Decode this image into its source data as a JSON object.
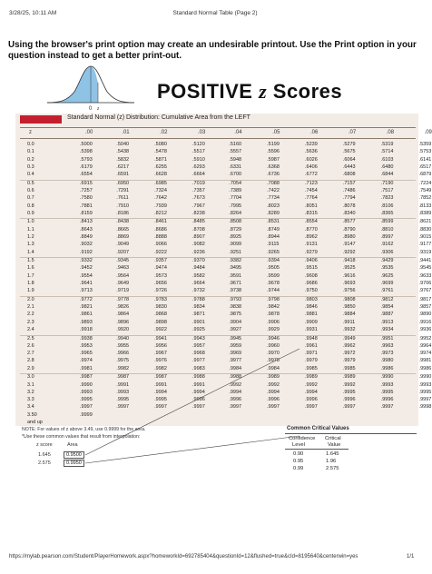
{
  "header": {
    "datetime": "3/28/25, 10:11 AM",
    "page_title": "Standard Normal Table (Page 2)"
  },
  "warning": "Using the browser's print option may create an undesirable printout. Use the Print option in your question instead to get a better print-out.",
  "figure": {
    "label_zero": "0",
    "label_z": "z"
  },
  "title": {
    "prefix": "POSITIVE ",
    "z": "z",
    "suffix": " Scores"
  },
  "table": {
    "title": "Standard Normal (z) Distribution: Cumulative Area from the LEFT",
    "z_header": "z",
    "columns": [
      ".00",
      ".01",
      ".02",
      ".03",
      ".04",
      ".05",
      ".06",
      ".07",
      ".08",
      ".09"
    ],
    "rows": [
      {
        "z": "0.0",
        "v": [
          ".5000",
          ".5040",
          ".5080",
          ".5120",
          ".5160",
          ".5199",
          ".5239",
          ".5279",
          ".5319",
          ".5359"
        ]
      },
      {
        "z": "0.1",
        "v": [
          ".5398",
          ".5438",
          ".5478",
          ".5517",
          ".5557",
          ".5596",
          ".5636",
          ".5675",
          ".5714",
          ".5753"
        ]
      },
      {
        "z": "0.2",
        "v": [
          ".5793",
          ".5832",
          ".5871",
          ".5910",
          ".5948",
          ".5987",
          ".6026",
          ".6064",
          ".6103",
          ".6141"
        ]
      },
      {
        "z": "0.3",
        "v": [
          ".6179",
          ".6217",
          ".6255",
          ".6293",
          ".6331",
          ".6368",
          ".6406",
          ".6443",
          ".6480",
          ".6517"
        ]
      },
      {
        "z": "0.4",
        "v": [
          ".6554",
          ".6591",
          ".6628",
          ".6664",
          ".6700",
          ".6736",
          ".6772",
          ".6808",
          ".6844",
          ".6879"
        ]
      },
      {
        "z": "0.5",
        "v": [
          ".6915",
          ".6950",
          ".6985",
          ".7019",
          ".7054",
          ".7088",
          ".7123",
          ".7157",
          ".7190",
          ".7224"
        ]
      },
      {
        "z": "0.6",
        "v": [
          ".7257",
          ".7291",
          ".7324",
          ".7357",
          ".7389",
          ".7422",
          ".7454",
          ".7486",
          ".7517",
          ".7549"
        ]
      },
      {
        "z": "0.7",
        "v": [
          ".7580",
          ".7611",
          ".7642",
          ".7673",
          ".7704",
          ".7734",
          ".7764",
          ".7794",
          ".7823",
          ".7852"
        ]
      },
      {
        "z": "0.8",
        "v": [
          ".7881",
          ".7910",
          ".7939",
          ".7967",
          ".7995",
          ".8023",
          ".8051",
          ".8078",
          ".8106",
          ".8133"
        ]
      },
      {
        "z": "0.9",
        "v": [
          ".8159",
          ".8186",
          ".8212",
          ".8238",
          ".8264",
          ".8289",
          ".8315",
          ".8340",
          ".8365",
          ".8389"
        ]
      },
      {
        "z": "1.0",
        "v": [
          ".8413",
          ".8438",
          ".8461",
          ".8485",
          ".8508",
          ".8531",
          ".8554",
          ".8577",
          ".8599",
          ".8621"
        ]
      },
      {
        "z": "1.1",
        "v": [
          ".8643",
          ".8665",
          ".8686",
          ".8708",
          ".8729",
          ".8749",
          ".8770",
          ".8790",
          ".8810",
          ".8830"
        ]
      },
      {
        "z": "1.2",
        "v": [
          ".8849",
          ".8869",
          ".8888",
          ".8907",
          ".8925",
          ".8944",
          ".8962",
          ".8980",
          ".8997",
          ".9015"
        ]
      },
      {
        "z": "1.3",
        "v": [
          ".9032",
          ".9049",
          ".9066",
          ".9082",
          ".9099",
          ".9115",
          ".9131",
          ".9147",
          ".9162",
          ".9177"
        ]
      },
      {
        "z": "1.4",
        "v": [
          ".9192",
          ".9207",
          ".9222",
          ".9236",
          ".9251",
          ".9265",
          ".9279",
          ".9292",
          ".9306",
          ".9319"
        ]
      },
      {
        "z": "1.5",
        "v": [
          ".9332",
          ".9345",
          ".9357",
          ".9370",
          ".9382",
          ".9394",
          ".9406",
          ".9418",
          ".9429",
          ".9441"
        ]
      },
      {
        "z": "1.6",
        "v": [
          ".9452",
          ".9463",
          ".9474",
          ".9484",
          ".9495",
          ".9505",
          ".9515",
          ".9525",
          ".9535",
          ".9545"
        ]
      },
      {
        "z": "1.7",
        "v": [
          ".9554",
          ".9564",
          ".9573",
          ".9582",
          ".9591",
          ".9599",
          ".9608",
          ".9616",
          ".9625",
          ".9633"
        ]
      },
      {
        "z": "1.8",
        "v": [
          ".9641",
          ".9649",
          ".9656",
          ".9664",
          ".9671",
          ".9678",
          ".9686",
          ".9693",
          ".9699",
          ".9706"
        ]
      },
      {
        "z": "1.9",
        "v": [
          ".9713",
          ".9719",
          ".9726",
          ".9732",
          ".9738",
          ".9744",
          ".9750",
          ".9756",
          ".9761",
          ".9767"
        ]
      },
      {
        "z": "2.0",
        "v": [
          ".9772",
          ".9778",
          ".9783",
          ".9788",
          ".9793",
          ".9798",
          ".9803",
          ".9808",
          ".9812",
          ".9817"
        ]
      },
      {
        "z": "2.1",
        "v": [
          ".9821",
          ".9826",
          ".9830",
          ".9834",
          ".9838",
          ".9842",
          ".9846",
          ".9850",
          ".9854",
          ".9857"
        ]
      },
      {
        "z": "2.2",
        "v": [
          ".9861",
          ".9864",
          ".9868",
          ".9871",
          ".9875",
          ".9878",
          ".9881",
          ".9884",
          ".9887",
          ".9890"
        ]
      },
      {
        "z": "2.3",
        "v": [
          ".9893",
          ".9896",
          ".9898",
          ".9901",
          ".9904",
          ".9906",
          ".9909",
          ".9911",
          ".9913",
          ".9916"
        ]
      },
      {
        "z": "2.4",
        "v": [
          ".9918",
          ".9920",
          ".9922",
          ".9925",
          ".9927",
          ".9929",
          ".9931",
          ".9932",
          ".9934",
          ".9936"
        ]
      },
      {
        "z": "2.5",
        "v": [
          ".9938",
          ".9940",
          ".9941",
          ".9943",
          ".9945",
          ".9946",
          ".9948",
          ".9949",
          ".9951",
          ".9952"
        ]
      },
      {
        "z": "2.6",
        "v": [
          ".9953",
          ".9955",
          ".9956",
          ".9957",
          ".9959",
          ".9960",
          ".9961",
          ".9962",
          ".9963",
          ".9964"
        ]
      },
      {
        "z": "2.7",
        "v": [
          ".9965",
          ".9966",
          ".9967",
          ".9968",
          ".9969",
          ".9970",
          ".9971",
          ".9972",
          ".9973",
          ".9974"
        ]
      },
      {
        "z": "2.8",
        "v": [
          ".9974",
          ".9975",
          ".9976",
          ".9977",
          ".9977",
          ".9978",
          ".9979",
          ".9979",
          ".9980",
          ".9981"
        ]
      },
      {
        "z": "2.9",
        "v": [
          ".9981",
          ".9982",
          ".9982",
          ".9983",
          ".9984",
          ".9984",
          ".9985",
          ".9985",
          ".9986",
          ".9986"
        ]
      },
      {
        "z": "3.0",
        "v": [
          ".9987",
          ".9987",
          ".9987",
          ".9988",
          ".9988",
          ".9989",
          ".9989",
          ".9989",
          ".9990",
          ".9990"
        ]
      },
      {
        "z": "3.1",
        "v": [
          ".9990",
          ".9991",
          ".9991",
          ".9991",
          ".9992",
          ".9992",
          ".9992",
          ".9992",
          ".9993",
          ".9993"
        ]
      },
      {
        "z": "3.2",
        "v": [
          ".9993",
          ".9993",
          ".9994",
          ".9994",
          ".9994",
          ".9994",
          ".9994",
          ".9995",
          ".9995",
          ".9995"
        ]
      },
      {
        "z": "3.3",
        "v": [
          ".9995",
          ".9995",
          ".9995",
          ".9996",
          ".9996",
          ".9996",
          ".9996",
          ".9996",
          ".9996",
          ".9997"
        ]
      },
      {
        "z": "3.4",
        "v": [
          ".9997",
          ".9997",
          ".9997",
          ".9997",
          ".9997",
          ".9997",
          ".9997",
          ".9997",
          ".9997",
          ".9998"
        ]
      },
      {
        "z": "3.50",
        "v": [
          ".9999",
          "",
          "",
          "",
          "",
          "",
          "",
          "",
          "",
          ""
        ]
      },
      {
        "z": "and up",
        "v": [
          "",
          "",
          "",
          "",
          "",
          "",
          "",
          "",
          "",
          ""
        ]
      }
    ]
  },
  "notes": {
    "note1": "NOTE: For values of z above 3.49, use 0.9999 for the area.",
    "note2": "*Use these common values that result from interpolation:"
  },
  "interpolation": {
    "z_header": "z score",
    "area_header": "Area",
    "rows": [
      {
        "z": "1.645",
        "area": "0.9500"
      },
      {
        "z": "2.575",
        "area": "0.9950"
      }
    ]
  },
  "critical": {
    "title": "Common Critical Values",
    "col1_line1": "Confidence",
    "col1_line2": "Level",
    "col2_line1": "Critical",
    "col2_line2": "Value",
    "rows": [
      {
        "cl": "0.90",
        "cv": "1.645"
      },
      {
        "cl": "0.95",
        "cv": "1.96"
      },
      {
        "cl": "0.99",
        "cv": "2.575"
      }
    ]
  },
  "footer": {
    "url": "https://mylab.pearson.com/Student/PlayerHomework.aspx?homeworkId=692785404&questionId=12&flushed=true&cId=8195640&centerwin=yes",
    "page": "1/1"
  },
  "colors": {
    "accent_red": "#c41f2e",
    "panel_bg": "#f3ece6",
    "curve_fill": "#8fc3e6"
  }
}
